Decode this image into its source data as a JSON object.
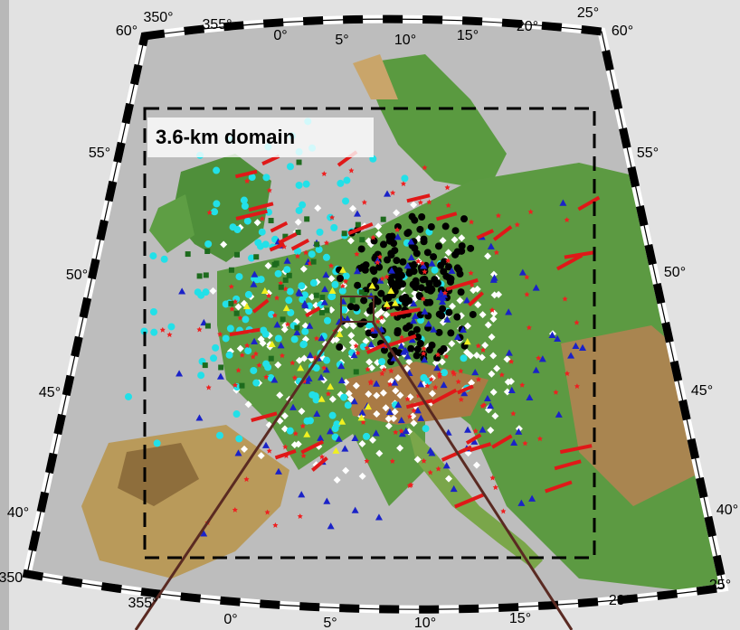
{
  "map": {
    "domain_label": "3.6-km domain",
    "top_labels": [
      "350°",
      "355°",
      "0°",
      "5°",
      "10°",
      "15°",
      "20°",
      "25°"
    ],
    "left_labels": [
      "60°",
      "55°",
      "50°",
      "45°",
      "40°"
    ],
    "right_labels": [
      "60°",
      "55°",
      "50°",
      "45°",
      "40°"
    ],
    "bottom_labels": [
      "350°",
      "355°",
      "0°",
      "5°",
      "10°",
      "15°",
      "20°",
      "25°"
    ]
  }
}
